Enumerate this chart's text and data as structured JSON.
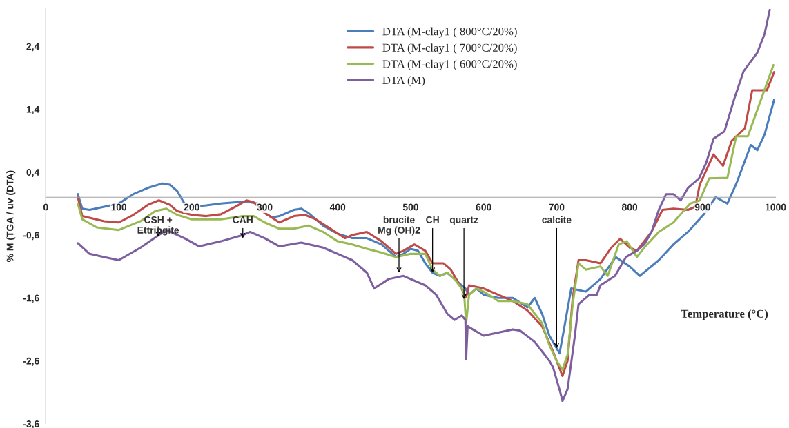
{
  "chart_data": {
    "type": "line",
    "xlabel": "Temperature (°C)",
    "ylabel": "% M (TGA / uv (DTA)",
    "xlim": [
      0,
      1000
    ],
    "xticks": [
      0,
      100,
      200,
      300,
      400,
      500,
      600,
      700,
      800,
      900,
      1000
    ],
    "ylim": [
      -3.6,
      3.0
    ],
    "yticks": [
      {
        "value": -3.6,
        "label": "-3,6"
      },
      {
        "value": -2.6,
        "label": "-2,6"
      },
      {
        "value": -1.6,
        "label": "-1,6"
      },
      {
        "value": -0.6,
        "label": "-0,6"
      },
      {
        "value": 0.4,
        "label": "0,4"
      },
      {
        "value": 1.4,
        "label": "1,4"
      },
      {
        "value": 2.4,
        "label": "2,4"
      }
    ],
    "grid": false,
    "legend": "top",
    "marker": "none",
    "line_style": "solid",
    "series": [
      {
        "name": "DTA (M-clay1 ( 800°C/20%)",
        "color": "#4a7ebb",
        "x": [
          44,
          50,
          60,
          80,
          100,
          120,
          140,
          160,
          170,
          180,
          190,
          200,
          220,
          240,
          260,
          280,
          290,
          300,
          310,
          320,
          340,
          350,
          360,
          380,
          400,
          420,
          440,
          460,
          480,
          490,
          500,
          510,
          520,
          530,
          540,
          550,
          560,
          575,
          580,
          590,
          600,
          620,
          640,
          660,
          670,
          680,
          690,
          704,
          710,
          720,
          740,
          760,
          781,
          800,
          814,
          840,
          860,
          880,
          901,
          918,
          934,
          947,
          966,
          975,
          985,
          998
        ],
        "values": [
          0.05,
          -0.18,
          -0.2,
          -0.15,
          -0.1,
          0.05,
          0.15,
          0.22,
          0.2,
          0.1,
          -0.1,
          -0.15,
          -0.13,
          -0.1,
          -0.08,
          -0.08,
          -0.1,
          -0.25,
          -0.32,
          -0.3,
          -0.2,
          -0.18,
          -0.25,
          -0.45,
          -0.58,
          -0.65,
          -0.65,
          -0.75,
          -0.95,
          -0.9,
          -0.82,
          -0.85,
          -1.05,
          -1.2,
          -1.25,
          -1.2,
          -1.3,
          -1.45,
          -1.55,
          -1.45,
          -1.55,
          -1.6,
          -1.6,
          -1.75,
          -1.6,
          -1.85,
          -2.2,
          -2.48,
          -2.1,
          -1.45,
          -1.5,
          -1.3,
          -0.95,
          -1.1,
          -1.25,
          -1.0,
          -0.75,
          -0.55,
          -0.28,
          0.0,
          -0.1,
          0.24,
          0.83,
          0.75,
          1.0,
          1.55
        ]
      },
      {
        "name": "DTA (M-clay1 ( 700°C/20%)",
        "color": "#be4b48",
        "x": [
          44,
          50,
          80,
          100,
          120,
          140,
          155,
          170,
          180,
          200,
          220,
          240,
          260,
          275,
          285,
          300,
          320,
          340,
          355,
          370,
          390,
          410,
          420,
          440,
          460,
          480,
          490,
          505,
          520,
          530,
          545,
          555,
          565,
          576,
          580,
          600,
          620,
          640,
          660,
          680,
          695,
          708,
          715,
          722,
          730,
          740,
          760,
          775,
          787,
          800,
          810,
          830,
          845,
          860,
          880,
          890,
          896,
          915,
          928,
          940,
          958,
          968,
          988,
          998
        ],
        "values": [
          0.0,
          -0.3,
          -0.38,
          -0.4,
          -0.28,
          -0.12,
          -0.05,
          -0.12,
          -0.22,
          -0.28,
          -0.3,
          -0.27,
          -0.15,
          -0.05,
          -0.08,
          -0.25,
          -0.4,
          -0.3,
          -0.28,
          -0.35,
          -0.5,
          -0.65,
          -0.6,
          -0.55,
          -0.7,
          -0.9,
          -0.85,
          -0.75,
          -0.85,
          -1.05,
          -1.05,
          -1.15,
          -1.35,
          -1.59,
          -1.4,
          -1.45,
          -1.55,
          -1.65,
          -1.8,
          -2.05,
          -2.45,
          -2.84,
          -2.6,
          -1.6,
          -1.0,
          -1.0,
          -1.05,
          -0.8,
          -0.66,
          -0.8,
          -0.85,
          -0.55,
          -0.2,
          -0.18,
          -0.2,
          -0.15,
          0.2,
          0.68,
          0.5,
          0.9,
          1.1,
          1.7,
          1.7,
          1.99
        ]
      },
      {
        "name": "DTA (M-clay1 ( 600°C/20%)",
        "color": "#98b954",
        "x": [
          44,
          50,
          70,
          100,
          130,
          150,
          165,
          180,
          200,
          240,
          270,
          285,
          300,
          320,
          340,
          360,
          380,
          400,
          420,
          440,
          460,
          480,
          500,
          520,
          530,
          540,
          550,
          560,
          573,
          576,
          580,
          590,
          600,
          620,
          640,
          660,
          680,
          690,
          700,
          708,
          715,
          722,
          730,
          740,
          760,
          770,
          785,
          796,
          810,
          820,
          840,
          860,
          883,
          896,
          909,
          934,
          946,
          962,
          997
        ],
        "values": [
          -0.1,
          -0.35,
          -0.48,
          -0.52,
          -0.38,
          -0.22,
          -0.18,
          -0.28,
          -0.35,
          -0.35,
          -0.3,
          -0.3,
          -0.4,
          -0.5,
          -0.5,
          -0.45,
          -0.55,
          -0.7,
          -0.75,
          -0.82,
          -0.88,
          -0.95,
          -0.9,
          -0.9,
          -1.15,
          -1.25,
          -1.2,
          -1.3,
          -1.5,
          -2.0,
          -1.55,
          -1.45,
          -1.5,
          -1.65,
          -1.65,
          -1.7,
          -2.0,
          -2.35,
          -2.6,
          -2.74,
          -2.5,
          -1.7,
          -1.05,
          -1.15,
          -1.1,
          -1.25,
          -0.75,
          -0.7,
          -0.95,
          -0.8,
          -0.55,
          -0.4,
          -0.1,
          -0.05,
          0.3,
          0.31,
          0.97,
          0.97,
          2.1
        ]
      },
      {
        "name": "DTA (M)",
        "color": "#7d5fa0",
        "x": [
          44,
          60,
          80,
          100,
          130,
          155,
          165,
          190,
          210,
          240,
          270,
          280,
          300,
          320,
          350,
          380,
          400,
          420,
          440,
          450,
          470,
          490,
          520,
          535,
          550,
          560,
          570,
          575,
          576,
          578,
          585,
          600,
          620,
          640,
          650,
          670,
          690,
          695,
          705,
          708,
          715,
          725,
          730,
          745,
          755,
          760,
          780,
          795,
          810,
          820,
          830,
          840,
          850,
          860,
          870,
          880,
          895,
          905,
          915,
          930,
          943,
          956,
          975,
          985,
          992
        ],
        "values": [
          -0.73,
          -0.9,
          -0.95,
          -1.0,
          -0.8,
          -0.6,
          -0.52,
          -0.65,
          -0.78,
          -0.7,
          -0.6,
          -0.55,
          -0.65,
          -0.78,
          -0.72,
          -0.8,
          -0.9,
          -1.0,
          -1.2,
          -1.45,
          -1.3,
          -1.25,
          -1.4,
          -1.55,
          -1.85,
          -1.95,
          -1.88,
          -1.95,
          -2.57,
          -2.05,
          -2.1,
          -2.2,
          -2.15,
          -2.1,
          -2.12,
          -2.3,
          -2.6,
          -2.7,
          -3.1,
          -3.24,
          -3.05,
          -2.2,
          -1.7,
          -1.55,
          -1.55,
          -1.4,
          -1.25,
          -0.95,
          -0.85,
          -0.75,
          -0.55,
          -0.2,
          0.05,
          0.05,
          -0.05,
          0.15,
          0.3,
          0.55,
          0.93,
          1.05,
          1.55,
          2.0,
          2.3,
          2.6,
          2.98
        ]
      }
    ],
    "annotations": [
      {
        "text": "CSH +\nEttringite",
        "x": 154,
        "y": -0.63
      },
      {
        "text": "CAH",
        "x": 270,
        "y": -0.65
      },
      {
        "text": "brucite\nMg (OH)2",
        "x": 484,
        "y": -1.2
      },
      {
        "text": "CH",
        "x": 530,
        "y": -1.2
      },
      {
        "text": "quartz",
        "x": 573,
        "y": -1.62
      },
      {
        "text": "calcite",
        "x": 700,
        "y": -2.4
      }
    ]
  }
}
